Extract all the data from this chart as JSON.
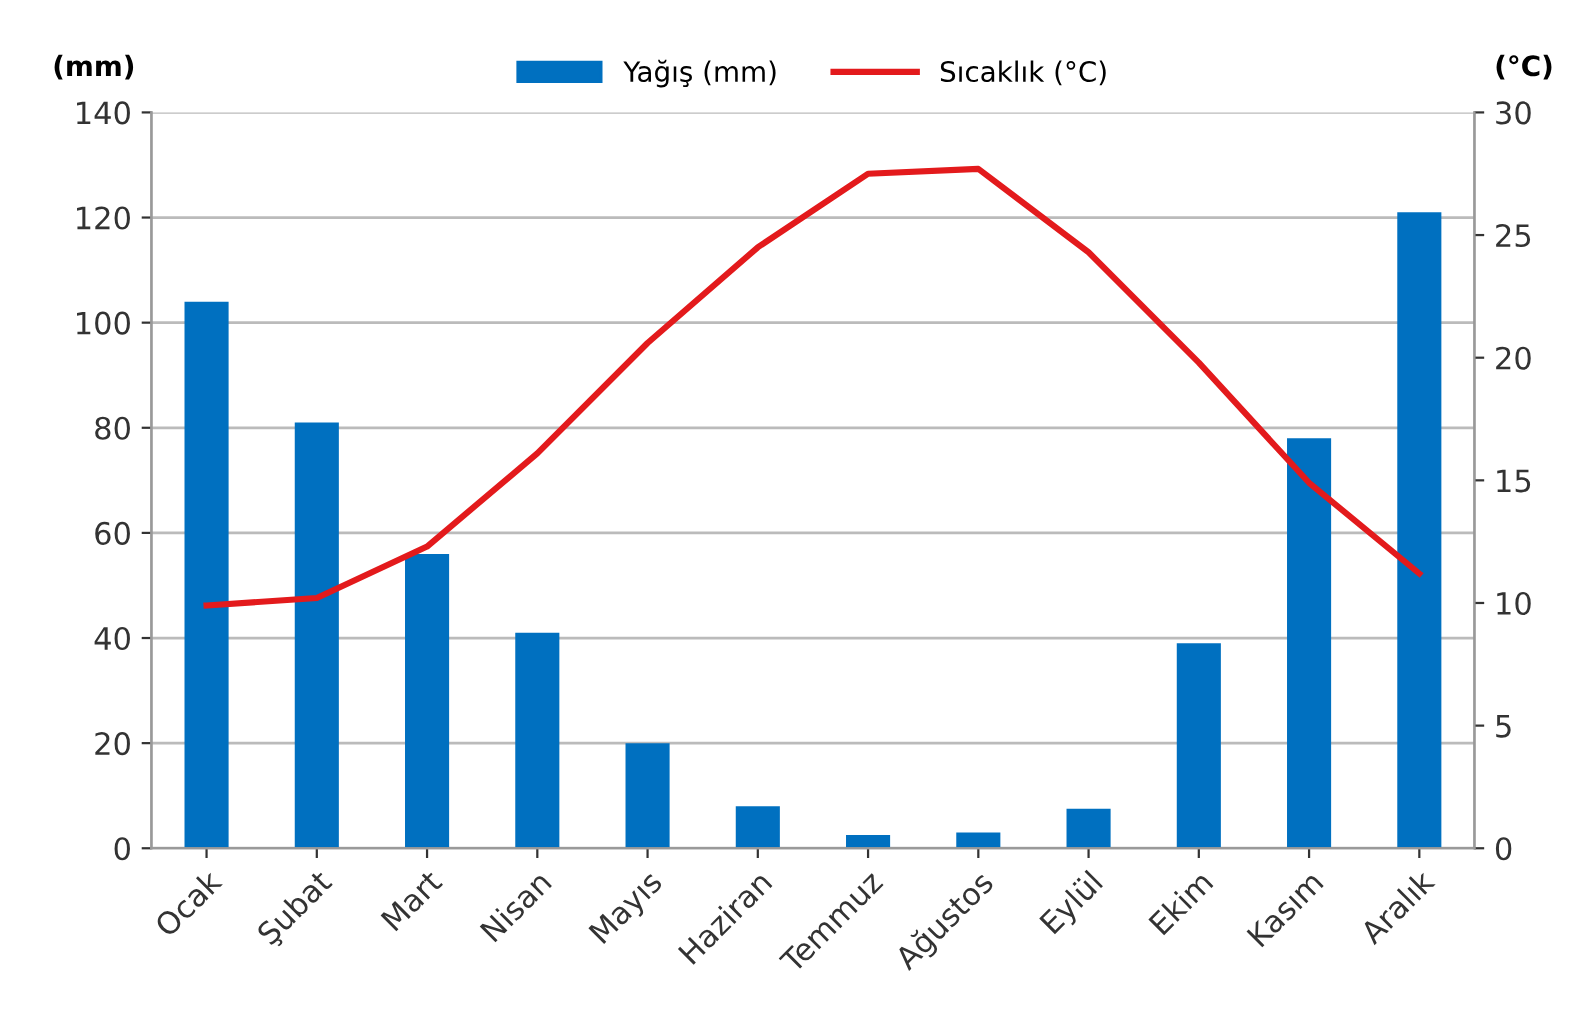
{
  "chart_data": {
    "type": "bar",
    "ylabel": "(mm)",
    "y2label": "(°C)",
    "categories": [
      "Ocak",
      "Şubat",
      "Mart",
      "Nisan",
      "Mayıs",
      "Haziran",
      "Temmuz",
      "Ağustos",
      "Eylül",
      "Ekim",
      "Kasım",
      "Aralık"
    ],
    "series": [
      {
        "name": "Yağış (mm)",
        "color": "#0070c0",
        "values": [
          104,
          81,
          56,
          41,
          20,
          8,
          2.5,
          3,
          7.5,
          39,
          78,
          121
        ]
      },
      {
        "name": "Sıcaklık (°C)",
        "type": "line",
        "axis": "y2",
        "color": "#e31a1c",
        "values": [
          9.9,
          10.2,
          12.3,
          16.1,
          20.6,
          24.5,
          27.5,
          27.7,
          24.3,
          19.8,
          14.9,
          11.2
        ]
      }
    ],
    "ylim": [
      0,
      140
    ],
    "yticks": [
      0,
      20,
      40,
      60,
      80,
      100,
      120,
      140
    ],
    "y2lim": [
      0,
      30
    ],
    "y2ticks": [
      0,
      5,
      10,
      15,
      20,
      25,
      30
    ],
    "grid": "y",
    "legend": "top",
    "marker": "none"
  }
}
